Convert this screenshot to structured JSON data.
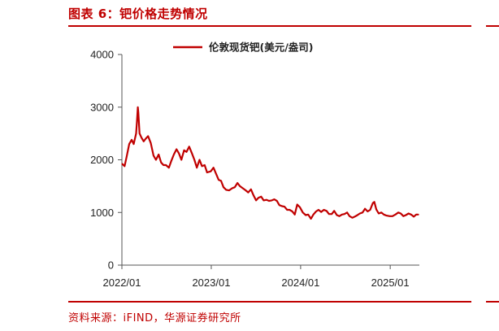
{
  "header": {
    "title": "图表 6：钯价格走势情况"
  },
  "footer": {
    "source": "资料来源：iFIND，华源证券研究所"
  },
  "colors": {
    "accent": "#c00000",
    "series": "#c00000"
  },
  "chart_data": {
    "type": "line",
    "title": "",
    "xlabel": "",
    "ylabel": "",
    "ylim": [
      0,
      4000
    ],
    "xlim": [
      "2022-01-01",
      "2025-04-30"
    ],
    "y_ticks": [
      0,
      1000,
      2000,
      3000,
      4000
    ],
    "x_ticks": [
      {
        "date": "2022-01-01",
        "label": "2022/01"
      },
      {
        "date": "2023-01-01",
        "label": "2023/01"
      },
      {
        "date": "2024-01-01",
        "label": "2024/01"
      },
      {
        "date": "2025-01-01",
        "label": "2025/01"
      }
    ],
    "legend": {
      "position": "top-center"
    },
    "grid": false,
    "series": [
      {
        "name": "伦敦现货钯(美元/盎司)",
        "points": [
          [
            "2022-01-03",
            1920
          ],
          [
            "2022-01-12",
            1880
          ],
          [
            "2022-01-20",
            2050
          ],
          [
            "2022-01-31",
            2300
          ],
          [
            "2022-02-10",
            2380
          ],
          [
            "2022-02-18",
            2300
          ],
          [
            "2022-02-28",
            2500
          ],
          [
            "2022-03-03",
            2700
          ],
          [
            "2022-03-07",
            3000
          ],
          [
            "2022-03-09",
            2900
          ],
          [
            "2022-03-14",
            2500
          ],
          [
            "2022-03-22",
            2420
          ],
          [
            "2022-03-31",
            2350
          ],
          [
            "2022-04-08",
            2400
          ],
          [
            "2022-04-18",
            2450
          ],
          [
            "2022-04-29",
            2320
          ],
          [
            "2022-05-10",
            2080
          ],
          [
            "2022-05-20",
            2000
          ],
          [
            "2022-05-31",
            2100
          ],
          [
            "2022-06-10",
            1950
          ],
          [
            "2022-06-20",
            1900
          ],
          [
            "2022-06-30",
            1900
          ],
          [
            "2022-07-12",
            1850
          ],
          [
            "2022-07-22",
            1980
          ],
          [
            "2022-08-01",
            2100
          ],
          [
            "2022-08-12",
            2200
          ],
          [
            "2022-08-22",
            2120
          ],
          [
            "2022-09-01",
            2000
          ],
          [
            "2022-09-12",
            2180
          ],
          [
            "2022-09-22",
            2150
          ],
          [
            "2022-10-03",
            2250
          ],
          [
            "2022-10-14",
            2120
          ],
          [
            "2022-10-24",
            2000
          ],
          [
            "2022-11-03",
            1850
          ],
          [
            "2022-11-14",
            2000
          ],
          [
            "2022-11-24",
            1880
          ],
          [
            "2022-12-05",
            1900
          ],
          [
            "2022-12-15",
            1760
          ],
          [
            "2022-12-30",
            1780
          ],
          [
            "2023-01-10",
            1850
          ],
          [
            "2023-01-20",
            1740
          ],
          [
            "2023-01-31",
            1620
          ],
          [
            "2023-02-10",
            1600
          ],
          [
            "2023-02-20",
            1480
          ],
          [
            "2023-03-03",
            1430
          ],
          [
            "2023-03-15",
            1420
          ],
          [
            "2023-03-27",
            1460
          ],
          [
            "2023-04-07",
            1480
          ],
          [
            "2023-04-18",
            1560
          ],
          [
            "2023-04-28",
            1500
          ],
          [
            "2023-05-10",
            1460
          ],
          [
            "2023-05-22",
            1420
          ],
          [
            "2023-06-01",
            1380
          ],
          [
            "2023-06-12",
            1440
          ],
          [
            "2023-06-22",
            1330
          ],
          [
            "2023-07-03",
            1230
          ],
          [
            "2023-07-13",
            1280
          ],
          [
            "2023-07-24",
            1300
          ],
          [
            "2023-08-03",
            1230
          ],
          [
            "2023-08-15",
            1240
          ],
          [
            "2023-08-25",
            1220
          ],
          [
            "2023-09-05",
            1230
          ],
          [
            "2023-09-15",
            1250
          ],
          [
            "2023-09-26",
            1220
          ],
          [
            "2023-10-06",
            1140
          ],
          [
            "2023-10-17",
            1120
          ],
          [
            "2023-10-27",
            1110
          ],
          [
            "2023-11-07",
            1050
          ],
          [
            "2023-11-17",
            1050
          ],
          [
            "2023-11-28",
            1020
          ],
          [
            "2023-12-08",
            960
          ],
          [
            "2023-12-18",
            1150
          ],
          [
            "2023-12-29",
            1100
          ],
          [
            "2024-01-10",
            1000
          ],
          [
            "2024-01-22",
            950
          ],
          [
            "2024-02-01",
            960
          ],
          [
            "2024-02-12",
            880
          ],
          [
            "2024-02-22",
            960
          ],
          [
            "2024-03-04",
            1020
          ],
          [
            "2024-03-14",
            1050
          ],
          [
            "2024-03-25",
            1010
          ],
          [
            "2024-04-05",
            1050
          ],
          [
            "2024-04-16",
            1030
          ],
          [
            "2024-04-26",
            970
          ],
          [
            "2024-05-07",
            970
          ],
          [
            "2024-05-17",
            1030
          ],
          [
            "2024-05-28",
            950
          ],
          [
            "2024-06-07",
            930
          ],
          [
            "2024-06-18",
            960
          ],
          [
            "2024-06-28",
            970
          ],
          [
            "2024-07-09",
            1000
          ],
          [
            "2024-07-19",
            930
          ],
          [
            "2024-07-30",
            900
          ],
          [
            "2024-08-09",
            920
          ],
          [
            "2024-08-20",
            950
          ],
          [
            "2024-08-30",
            980
          ],
          [
            "2024-09-10",
            1000
          ],
          [
            "2024-09-20",
            1070
          ],
          [
            "2024-10-01",
            1020
          ],
          [
            "2024-10-11",
            1050
          ],
          [
            "2024-10-22",
            1180
          ],
          [
            "2024-10-28",
            1200
          ],
          [
            "2024-11-05",
            1060
          ],
          [
            "2024-11-15",
            980
          ],
          [
            "2024-11-26",
            1000
          ],
          [
            "2024-12-06",
            960
          ],
          [
            "2024-12-17",
            940
          ],
          [
            "2024-12-30",
            930
          ],
          [
            "2025-01-10",
            930
          ],
          [
            "2025-01-22",
            960
          ],
          [
            "2025-02-03",
            1000
          ],
          [
            "2025-02-13",
            980
          ],
          [
            "2025-02-24",
            930
          ],
          [
            "2025-03-06",
            950
          ],
          [
            "2025-03-17",
            980
          ],
          [
            "2025-03-27",
            960
          ],
          [
            "2025-04-07",
            920
          ],
          [
            "2025-04-17",
            960
          ],
          [
            "2025-04-25",
            960
          ]
        ]
      }
    ]
  }
}
